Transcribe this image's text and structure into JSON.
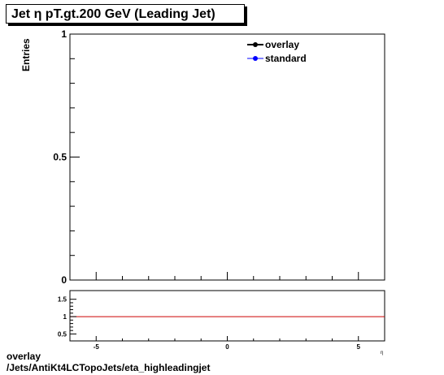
{
  "title": "Jet  η pT.gt.200 GeV (Leading Jet)",
  "footer": {
    "line1": "overlay",
    "line2": "/Jets/AntiKt4LCTopoJets/eta_highleadingjet"
  },
  "colors": {
    "overlay": "#000000",
    "standard": "#0000ff",
    "ratio_line": "#cc0000"
  },
  "chart_data": [
    {
      "type": "line",
      "title": "Jet  η pT.gt.200 GeV (Leading Jet)",
      "ylabel": "Entries",
      "xlabel": "",
      "xlim": [
        -6,
        6
      ],
      "ylim": [
        0,
        1
      ],
      "yticks": [
        {
          "value": 0,
          "label": "0"
        },
        {
          "value": 0.5,
          "label": "0.5"
        },
        {
          "value": 1,
          "label": "1"
        }
      ],
      "legend": {
        "position": "top-right",
        "entries": [
          "overlay",
          "standard"
        ]
      },
      "series": [
        {
          "name": "overlay",
          "x": [],
          "y": []
        },
        {
          "name": "standard",
          "x": [],
          "y": []
        }
      ]
    },
    {
      "type": "line",
      "title": "",
      "xlim": [
        -6,
        6
      ],
      "ylim": [
        0.3,
        1.75
      ],
      "xticks": [
        {
          "value": -5,
          "label": "-5"
        },
        {
          "value": 0,
          "label": "0"
        },
        {
          "value": 5,
          "label": "5"
        }
      ],
      "yticks": [
        {
          "value": 0.5,
          "label": "0.5"
        },
        {
          "value": 1,
          "label": "1"
        },
        {
          "value": 1.5,
          "label": "1.5"
        }
      ],
      "reference_line": 1,
      "axis_end_label": "η"
    }
  ]
}
